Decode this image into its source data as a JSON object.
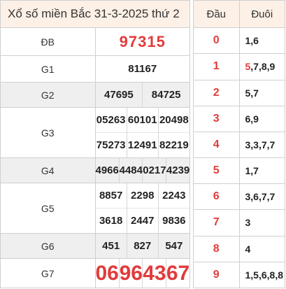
{
  "title": "Xổ số miền Bắc 31-3-2025 thứ 2",
  "prizes": {
    "db": {
      "label": "ĐB",
      "numbers": [
        "97315"
      ]
    },
    "g1": {
      "label": "G1",
      "numbers": [
        "81167"
      ]
    },
    "g2": {
      "label": "G2",
      "numbers": [
        "47695",
        "84725"
      ]
    },
    "g3": {
      "label": "G3",
      "numbers": [
        "05263",
        "60101",
        "20498",
        "75273",
        "12491",
        "82219"
      ]
    },
    "g4": {
      "label": "G4",
      "numbers": [
        "4966",
        "4484",
        "0217",
        "4239"
      ]
    },
    "g5": {
      "label": "G5",
      "numbers": [
        "8857",
        "2298",
        "2243",
        "3618",
        "2447",
        "9836"
      ]
    },
    "g6": {
      "label": "G6",
      "numbers": [
        "451",
        "827",
        "547"
      ]
    },
    "g7": {
      "label": "G7",
      "numbers": [
        "06",
        "96",
        "43",
        "67"
      ]
    }
  },
  "loto": {
    "head_label": "Đầu",
    "tail_label": "Đuôi",
    "rows": [
      {
        "dau": "0",
        "duoi_hl": "",
        "duoi": "1,6"
      },
      {
        "dau": "1",
        "duoi_hl": "5",
        "duoi": ",7,8,9"
      },
      {
        "dau": "2",
        "duoi_hl": "",
        "duoi": "5,7"
      },
      {
        "dau": "3",
        "duoi_hl": "",
        "duoi": "6,9"
      },
      {
        "dau": "4",
        "duoi_hl": "",
        "duoi": "3,3,7,7"
      },
      {
        "dau": "5",
        "duoi_hl": "",
        "duoi": "1,7"
      },
      {
        "dau": "6",
        "duoi_hl": "",
        "duoi": "3,6,7,7"
      },
      {
        "dau": "7",
        "duoi_hl": "",
        "duoi": "3"
      },
      {
        "dau": "8",
        "duoi_hl": "",
        "duoi": "4"
      },
      {
        "dau": "9",
        "duoi_hl": "",
        "duoi": "1,5,6,8,8"
      }
    ]
  },
  "colors": {
    "accent": "#e23b3b",
    "header_bg": "#fdf0e6",
    "row_shade": "#efefef"
  }
}
